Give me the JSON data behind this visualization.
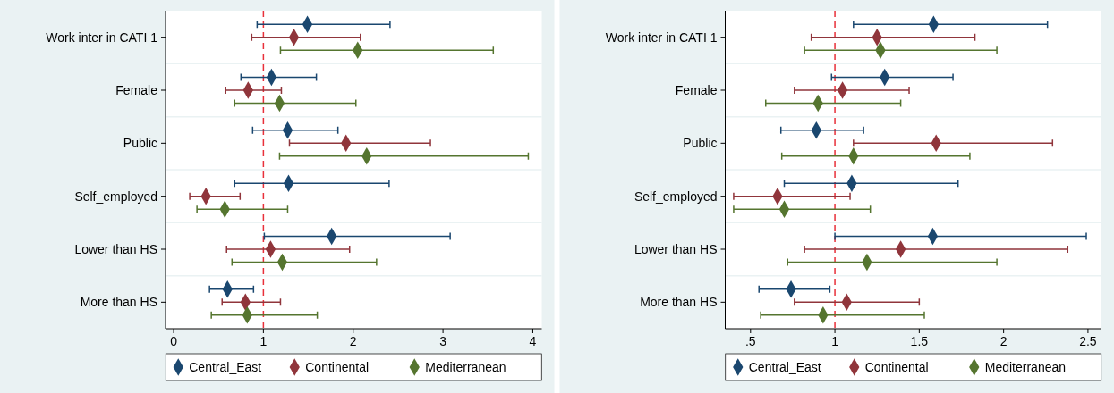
{
  "chart_data": [
    {
      "type": "scatter",
      "orientation": "horizontal",
      "categories": [
        "Work inter in CATI 1",
        "Female",
        "Public",
        "Self_employed",
        "Lower than HS",
        "More than HS"
      ],
      "xlim": [
        -0.09,
        4.1
      ],
      "xticks": [
        0,
        1,
        2,
        3,
        4
      ],
      "grid": "y",
      "legend": "bottom",
      "marker": "diamond",
      "ref_lines": [
        {
          "axis": "x",
          "value": 1,
          "color": "#e8303a",
          "line_style": "dashed"
        }
      ],
      "series": [
        {
          "name": "Central_East",
          "color": "#1a476f",
          "values": [
            1.49,
            1.09,
            1.27,
            1.28,
            1.76,
            0.6
          ],
          "errors": [
            [
              0.93,
              2.41
            ],
            [
              0.75,
              1.59
            ],
            [
              0.88,
              1.83
            ],
            [
              0.68,
              2.4
            ],
            [
              1.01,
              3.08
            ],
            [
              0.4,
              0.89
            ]
          ]
        },
        {
          "name": "Continental",
          "color": "#90353b",
          "values": [
            1.34,
            0.83,
            1.92,
            0.36,
            1.08,
            0.8
          ],
          "errors": [
            [
              0.87,
              2.08
            ],
            [
              0.58,
              1.2
            ],
            [
              1.29,
              2.86
            ],
            [
              0.18,
              0.74
            ],
            [
              0.59,
              1.96
            ],
            [
              0.54,
              1.19
            ]
          ]
        },
        {
          "name": "Mediterranean",
          "color": "#55752f",
          "values": [
            2.05,
            1.18,
            2.15,
            0.57,
            1.21,
            0.82
          ],
          "errors": [
            [
              1.19,
              3.56
            ],
            [
              0.68,
              2.03
            ],
            [
              1.18,
              3.95
            ],
            [
              0.26,
              1.27
            ],
            [
              0.65,
              2.26
            ],
            [
              0.42,
              1.6
            ]
          ]
        }
      ]
    },
    {
      "type": "scatter",
      "orientation": "horizontal",
      "categories": [
        "Work inter in CATI 1",
        "Female",
        "Public",
        "Self_employed",
        "Lower than HS",
        "More than HS"
      ],
      "xlim": [
        0.35,
        2.58
      ],
      "xticks": [
        {
          "value": 0.5,
          "label": ".5"
        },
        1,
        {
          "value": 1.5,
          "label": "1.5"
        },
        2,
        {
          "value": 2.5,
          "label": "2.5"
        }
      ],
      "grid": "y",
      "legend": "bottom",
      "marker": "diamond",
      "ref_lines": [
        {
          "axis": "x",
          "value": 1,
          "color": "#e8303a",
          "line_style": "dashed"
        }
      ],
      "series": [
        {
          "name": "Central_East",
          "color": "#1a476f",
          "values": [
            1.585,
            1.295,
            0.89,
            1.1,
            1.58,
            0.74
          ],
          "errors": [
            [
              1.11,
              2.26
            ],
            [
              0.98,
              1.7
            ],
            [
              0.68,
              1.17
            ],
            [
              0.7,
              1.73
            ],
            [
              1.0,
              2.49
            ],
            [
              0.55,
              0.97
            ]
          ]
        },
        {
          "name": "Continental",
          "color": "#90353b",
          "values": [
            1.25,
            1.045,
            1.6,
            0.66,
            1.39,
            1.07
          ],
          "errors": [
            [
              0.86,
              1.83
            ],
            [
              0.76,
              1.44
            ],
            [
              1.11,
              2.29
            ],
            [
              0.4,
              1.09
            ],
            [
              0.82,
              2.38
            ],
            [
              0.76,
              1.5
            ]
          ]
        },
        {
          "name": "Mediterranean",
          "color": "#55752f",
          "values": [
            1.27,
            0.9,
            1.11,
            0.7,
            1.19,
            0.93
          ],
          "errors": [
            [
              0.82,
              1.96
            ],
            [
              0.59,
              1.39
            ],
            [
              0.685,
              1.8
            ],
            [
              0.4,
              1.21
            ],
            [
              0.72,
              1.96
            ],
            [
              0.56,
              1.53
            ]
          ]
        }
      ]
    }
  ]
}
